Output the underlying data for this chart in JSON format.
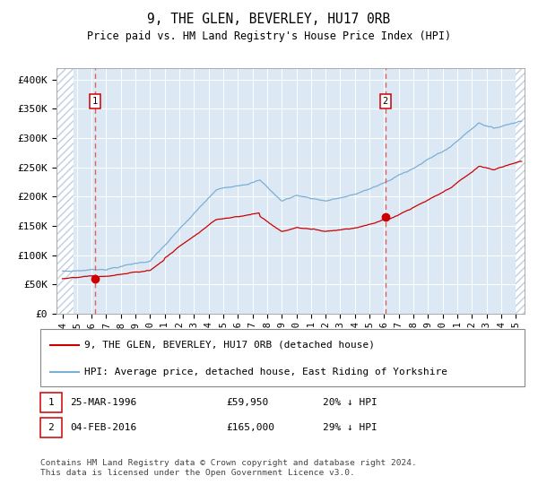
{
  "title": "9, THE GLEN, BEVERLEY, HU17 0RB",
  "subtitle": "Price paid vs. HM Land Registry's House Price Index (HPI)",
  "ylim": [
    0,
    420000
  ],
  "yticks": [
    0,
    50000,
    100000,
    150000,
    200000,
    250000,
    300000,
    350000,
    400000
  ],
  "ytick_labels": [
    "£0",
    "£50K",
    "£100K",
    "£150K",
    "£200K",
    "£250K",
    "£300K",
    "£350K",
    "£400K"
  ],
  "xlim_start": 1993.6,
  "xlim_end": 2025.6,
  "bg_color": "#dce9f5",
  "hatch_color": "#c0cfe0",
  "grid_color": "#ffffff",
  "red_line_color": "#cc0000",
  "blue_line_color": "#7bafd4",
  "dashed_line_color": "#e06060",
  "sale1_date_num": 1996.23,
  "sale1_price": 59950,
  "sale2_date_num": 2016.09,
  "sale2_price": 165000,
  "legend_line1": "9, THE GLEN, BEVERLEY, HU17 0RB (detached house)",
  "legend_line2": "HPI: Average price, detached house, East Riding of Yorkshire",
  "sale1_date_str": "25-MAR-1996",
  "sale1_price_str": "£59,950",
  "sale1_hpi_str": "20% ↓ HPI",
  "sale2_date_str": "04-FEB-2016",
  "sale2_price_str": "£165,000",
  "sale2_hpi_str": "29% ↓ HPI",
  "footnote": "Contains HM Land Registry data © Crown copyright and database right 2024.\nThis data is licensed under the Open Government Licence v3.0."
}
